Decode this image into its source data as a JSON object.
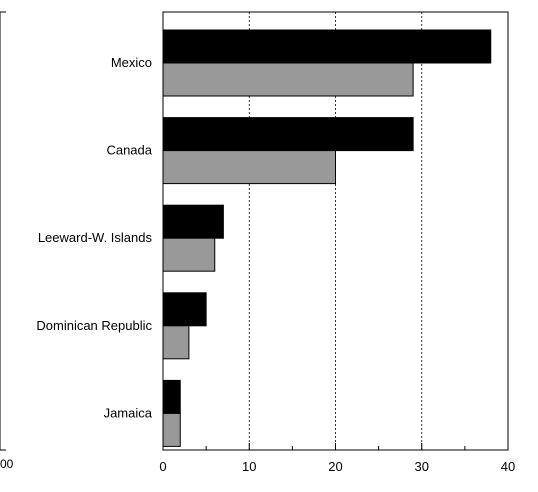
{
  "chart_data": {
    "type": "bar",
    "orientation": "horizontal",
    "categories": [
      "Mexico",
      "Canada",
      "Leeward-W. Islands",
      "Dominican Republic",
      "Jamaica"
    ],
    "series": [
      {
        "color": "#000000",
        "values": [
          38,
          29,
          7,
          5,
          2
        ]
      },
      {
        "color": "#999999",
        "values": [
          29,
          20,
          6,
          3,
          2
        ]
      }
    ],
    "xlim": [
      0,
      40
    ],
    "xticks": [
      0,
      10,
      20,
      30,
      40
    ],
    "xticks_minor": [
      5,
      15,
      25,
      35
    ],
    "grid": "vertical dashed",
    "left_fragment": {
      "tick_label": "00"
    }
  }
}
